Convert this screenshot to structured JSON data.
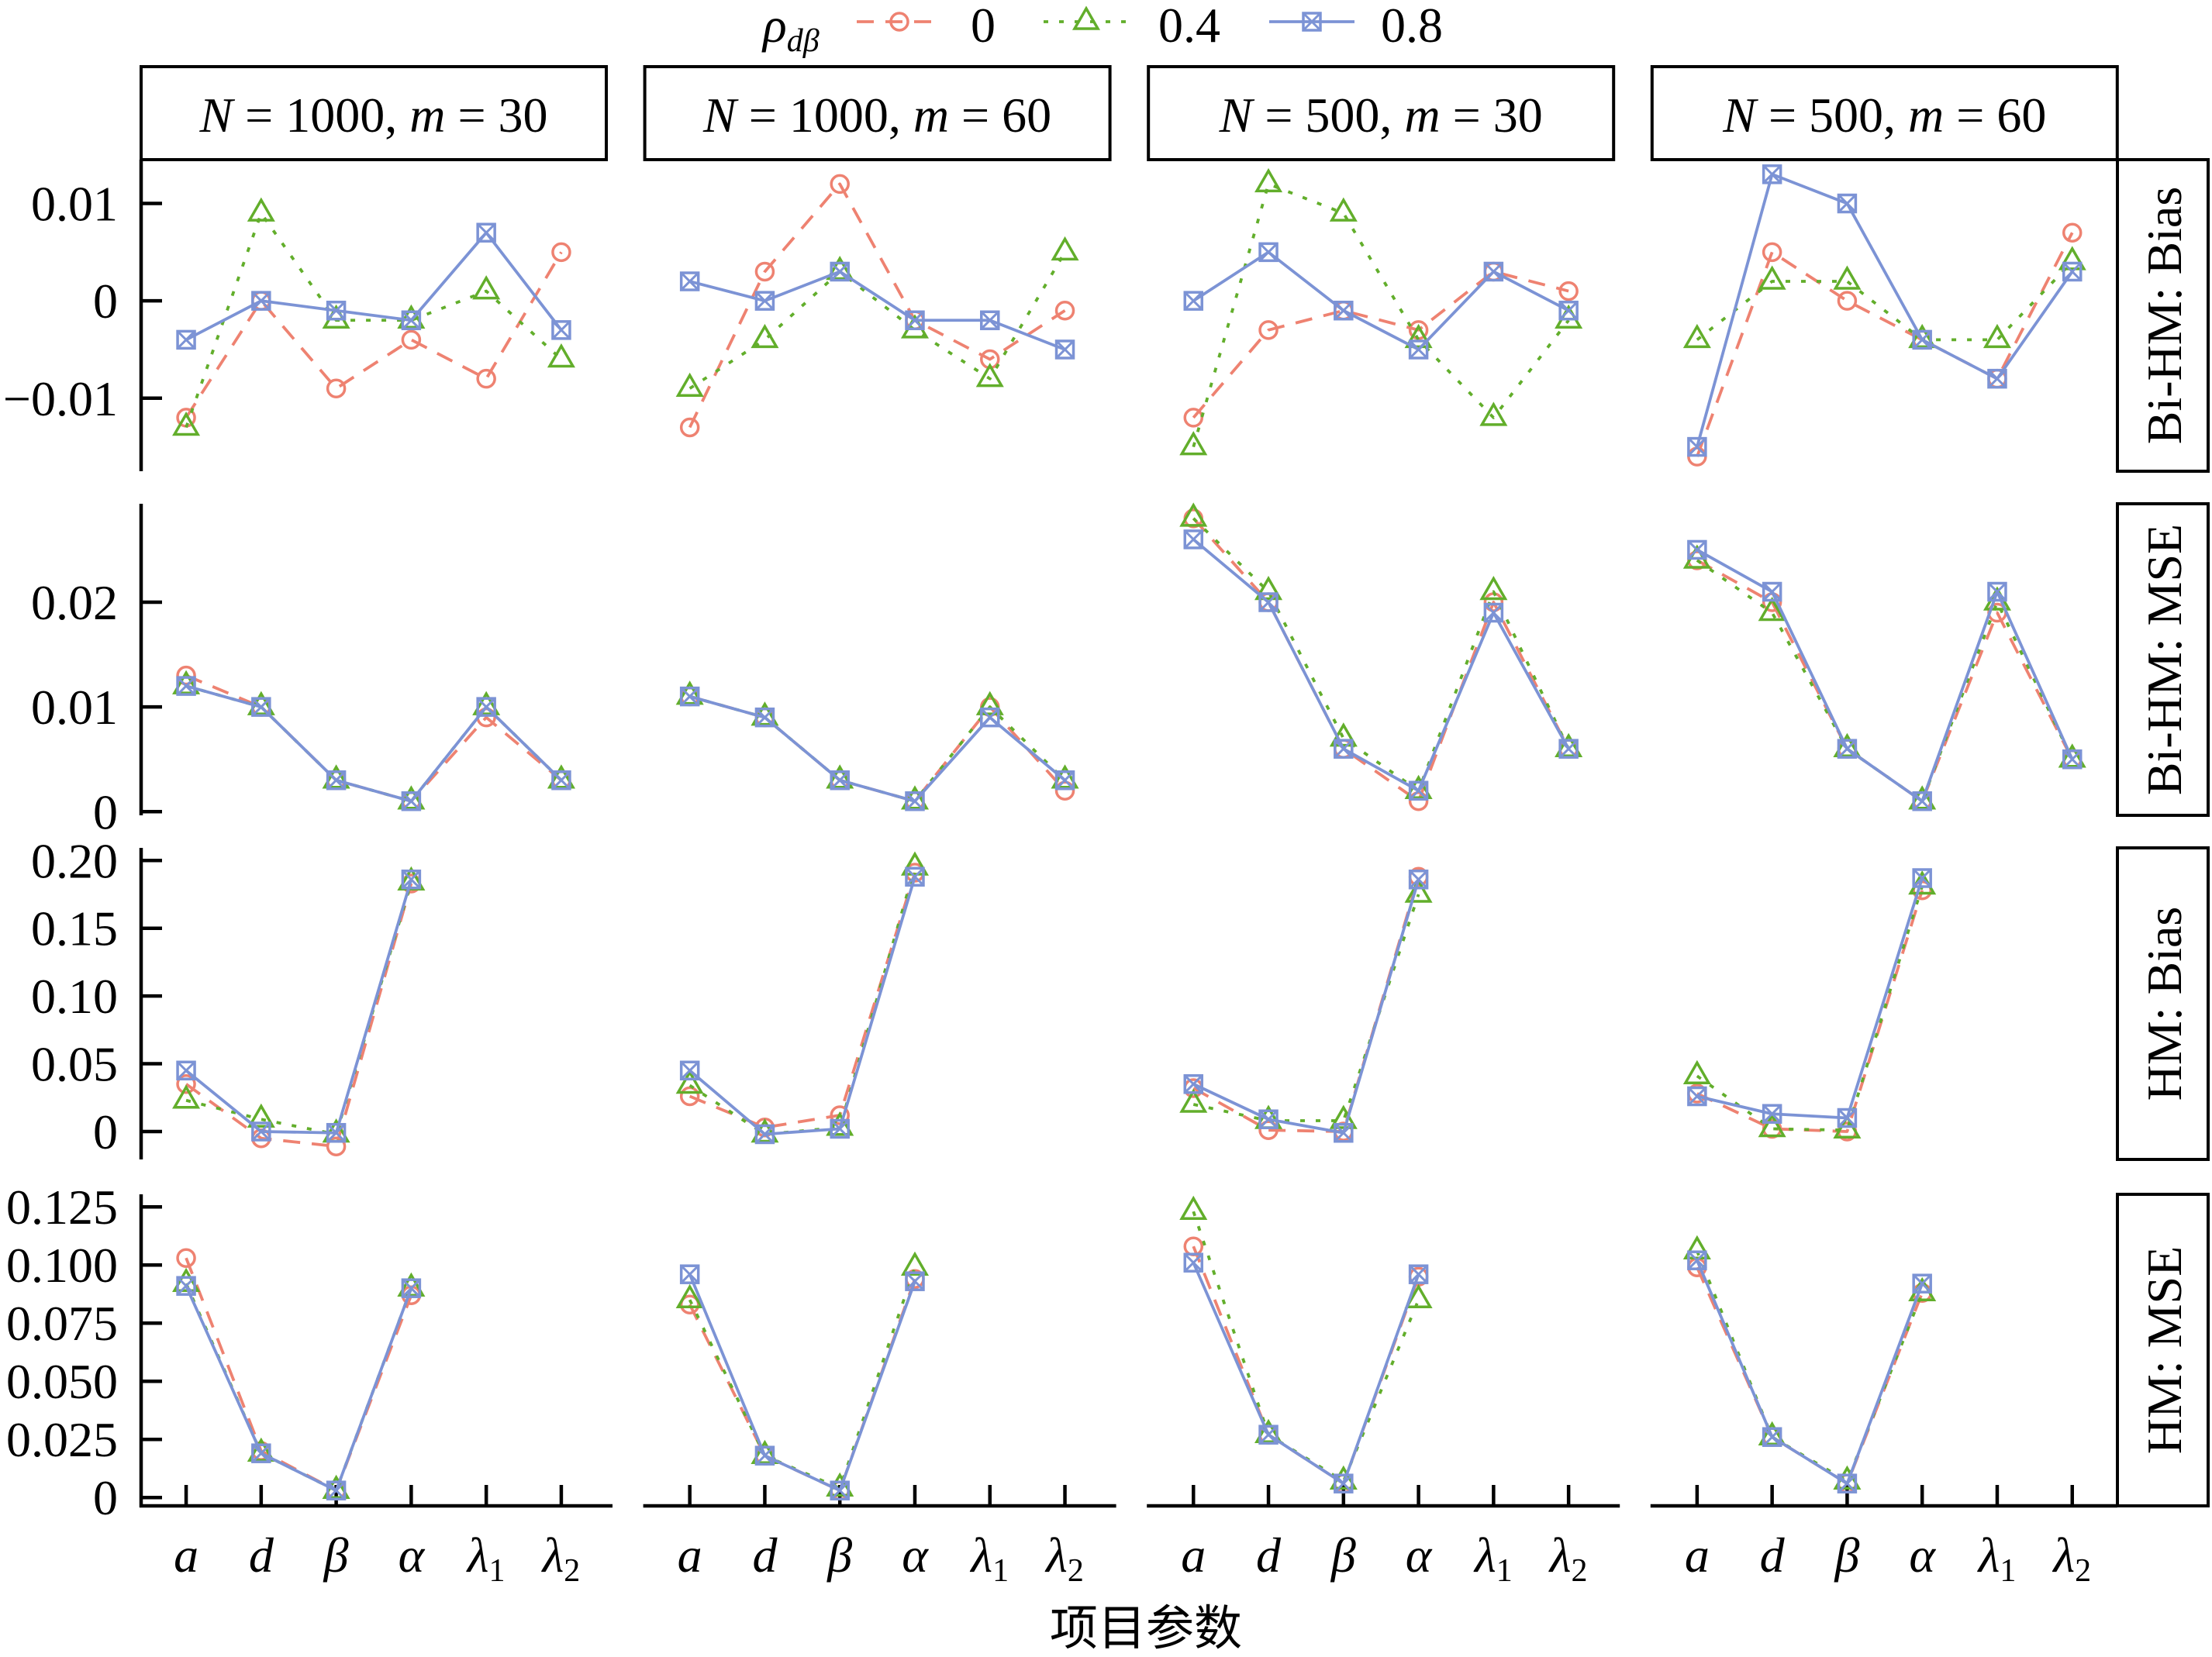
{
  "chart_data": {
    "type": "line",
    "title": "",
    "xlabel": "项目参数",
    "ylabel": "",
    "grid": false,
    "categories": [
      "a",
      "d",
      "β",
      "α",
      "λ1",
      "λ2"
    ],
    "category_labels": [
      {
        "base": "a"
      },
      {
        "base": "d"
      },
      {
        "base": "β"
      },
      {
        "base": "α"
      },
      {
        "base": "λ",
        "sub": "1"
      },
      {
        "base": "λ",
        "sub": "2"
      }
    ],
    "legend": {
      "title": "ρdβ",
      "title_base": "ρ",
      "title_sub": "dβ",
      "placement": "top",
      "entries": [
        {
          "label": "0",
          "color": "#EE8271",
          "linetype": "dashed",
          "marker": "circle-open"
        },
        {
          "label": "0.4",
          "color": "#62AE2B",
          "linetype": "dotted",
          "marker": "triangle-open"
        },
        {
          "label": "0.8",
          "color": "#7C93D5",
          "linetype": "solid",
          "marker": "square-cross"
        }
      ]
    },
    "columns": [
      {
        "label": "N = 1000, m = 30",
        "label_parts": [
          {
            "text": "N",
            "italic": true
          },
          {
            "text": " = 1000, "
          },
          {
            "text": "m",
            "italic": true
          },
          {
            "text": " = 30"
          }
        ]
      },
      {
        "label": "N = 1000, m = 60",
        "label_parts": [
          {
            "text": "N",
            "italic": true
          },
          {
            "text": " = 1000, "
          },
          {
            "text": "m",
            "italic": true
          },
          {
            "text": " = 60"
          }
        ]
      },
      {
        "label": "N = 500, m = 30",
        "label_parts": [
          {
            "text": "N",
            "italic": true
          },
          {
            "text": " = 500, "
          },
          {
            "text": "m",
            "italic": true
          },
          {
            "text": " = 30"
          }
        ]
      },
      {
        "label": "N = 500, m = 60",
        "label_parts": [
          {
            "text": "N",
            "italic": true
          },
          {
            "text": " = 500, "
          },
          {
            "text": "m",
            "italic": true
          },
          {
            "text": " = 60"
          }
        ]
      }
    ],
    "rows": [
      {
        "label": "Bi-HM: Bias",
        "ylim": [
          -0.0175,
          0.0145
        ],
        "yticks": [
          -0.01,
          0,
          0.01
        ],
        "ytick_labels": [
          "−0.01",
          "0",
          "0.01"
        ]
      },
      {
        "label": "Bi-HM: MSE",
        "ylim": [
          -0.00035,
          0.0294
        ],
        "yticks": [
          0,
          0.01,
          0.02
        ],
        "ytick_labels": [
          "0",
          "0.01",
          "0.02"
        ]
      },
      {
        "label": "HM: Bias",
        "ylim": [
          -0.0206,
          0.2093
        ],
        "yticks": [
          0,
          0.05,
          0.1,
          0.15,
          0.2
        ],
        "ytick_labels": [
          "0",
          "0.05",
          "0.10",
          "0.15",
          "0.20"
        ]
      },
      {
        "label": "HM: MSE",
        "ylim": [
          -0.0036,
          0.1304
        ],
        "yticks": [
          0,
          0.025,
          0.05,
          0.075,
          0.1,
          0.125
        ],
        "ytick_labels": [
          "0",
          "0.025",
          "0.050",
          "0.075",
          "0.100",
          "0.125"
        ]
      }
    ],
    "panels": [
      {
        "row": 0,
        "col": 0,
        "series": [
          {
            "name": "0",
            "values": [
              -0.012,
              0.0,
              -0.009,
              -0.004,
              -0.008,
              0.005
            ]
          },
          {
            "name": "0.4",
            "values": [
              -0.013,
              0.009,
              -0.002,
              -0.002,
              0.001,
              -0.006
            ]
          },
          {
            "name": "0.8",
            "values": [
              -0.004,
              0.0,
              -0.001,
              -0.002,
              0.007,
              -0.003
            ]
          }
        ]
      },
      {
        "row": 0,
        "col": 1,
        "series": [
          {
            "name": "0",
            "values": [
              -0.013,
              0.003,
              0.012,
              -0.002,
              -0.006,
              -0.001
            ]
          },
          {
            "name": "0.4",
            "values": [
              -0.009,
              -0.004,
              0.003,
              -0.003,
              -0.008,
              0.005
            ]
          },
          {
            "name": "0.8",
            "values": [
              0.002,
              0.0,
              0.003,
              -0.002,
              -0.002,
              -0.005
            ]
          }
        ]
      },
      {
        "row": 0,
        "col": 2,
        "series": [
          {
            "name": "0",
            "values": [
              -0.012,
              -0.003,
              -0.001,
              -0.003,
              0.003,
              0.001
            ]
          },
          {
            "name": "0.4",
            "values": [
              -0.015,
              0.012,
              0.009,
              -0.004,
              -0.012,
              -0.002
            ]
          },
          {
            "name": "0.8",
            "values": [
              0.0,
              0.005,
              -0.001,
              -0.005,
              0.003,
              -0.001
            ]
          }
        ]
      },
      {
        "row": 0,
        "col": 3,
        "series": [
          {
            "name": "0",
            "values": [
              -0.016,
              0.005,
              0.0,
              -0.004,
              -0.008,
              0.007
            ]
          },
          {
            "name": "0.4",
            "values": [
              -0.004,
              0.002,
              0.002,
              -0.004,
              -0.004,
              0.004
            ]
          },
          {
            "name": "0.8",
            "values": [
              -0.015,
              0.013,
              0.01,
              -0.004,
              -0.008,
              0.003
            ]
          }
        ]
      },
      {
        "row": 1,
        "col": 0,
        "series": [
          {
            "name": "0",
            "values": [
              0.013,
              0.01,
              0.003,
              0.001,
              0.009,
              0.003
            ]
          },
          {
            "name": "0.4",
            "values": [
              0.012,
              0.01,
              0.003,
              0.001,
              0.01,
              0.003
            ]
          },
          {
            "name": "0.8",
            "values": [
              0.012,
              0.01,
              0.003,
              0.001,
              0.01,
              0.003
            ]
          }
        ]
      },
      {
        "row": 1,
        "col": 1,
        "series": [
          {
            "name": "0",
            "values": [
              0.011,
              0.009,
              0.003,
              0.001,
              0.01,
              0.002
            ]
          },
          {
            "name": "0.4",
            "values": [
              0.011,
              0.009,
              0.003,
              0.001,
              0.01,
              0.003
            ]
          },
          {
            "name": "0.8",
            "values": [
              0.011,
              0.009,
              0.003,
              0.001,
              0.009,
              0.003
            ]
          }
        ]
      },
      {
        "row": 1,
        "col": 2,
        "series": [
          {
            "name": "0",
            "values": [
              0.028,
              0.02,
              0.006,
              0.001,
              0.02,
              0.006
            ]
          },
          {
            "name": "0.4",
            "values": [
              0.028,
              0.021,
              0.007,
              0.002,
              0.021,
              0.006
            ]
          },
          {
            "name": "0.8",
            "values": [
              0.026,
              0.02,
              0.006,
              0.002,
              0.019,
              0.006
            ]
          }
        ]
      },
      {
        "row": 1,
        "col": 3,
        "series": [
          {
            "name": "0",
            "values": [
              0.024,
              0.02,
              0.006,
              0.001,
              0.019,
              0.005
            ]
          },
          {
            "name": "0.4",
            "values": [
              0.024,
              0.019,
              0.006,
              0.001,
              0.02,
              0.005
            ]
          },
          {
            "name": "0.8",
            "values": [
              0.025,
              0.021,
              0.006,
              0.001,
              0.021,
              0.005
            ]
          }
        ]
      },
      {
        "row": 2,
        "col": 0,
        "series": [
          {
            "name": "0",
            "values": [
              0.035,
              -0.005,
              -0.011,
              0.183,
              null,
              null
            ]
          },
          {
            "name": "0.4",
            "values": [
              0.023,
              0.009,
              -0.002,
              0.184,
              null,
              null
            ]
          },
          {
            "name": "0.8",
            "values": [
              0.045,
              0.0,
              -0.001,
              0.186,
              null,
              null
            ]
          }
        ]
      },
      {
        "row": 2,
        "col": 1,
        "series": [
          {
            "name": "0",
            "values": [
              0.026,
              0.003,
              0.012,
              0.191,
              null,
              null
            ]
          },
          {
            "name": "0.4",
            "values": [
              0.034,
              -0.002,
              0.003,
              0.195,
              null,
              null
            ]
          },
          {
            "name": "0.8",
            "values": [
              0.045,
              -0.002,
              0.002,
              0.188,
              null,
              null
            ]
          }
        ]
      },
      {
        "row": 2,
        "col": 2,
        "series": [
          {
            "name": "0",
            "values": [
              0.032,
              0.001,
              0.0,
              0.188,
              null,
              null
            ]
          },
          {
            "name": "0.4",
            "values": [
              0.02,
              0.008,
              0.008,
              0.175,
              null,
              null
            ]
          },
          {
            "name": "0.8",
            "values": [
              0.035,
              0.009,
              -0.001,
              0.186,
              null,
              null
            ]
          }
        ]
      },
      {
        "row": 2,
        "col": 3,
        "series": [
          {
            "name": "0",
            "values": [
              0.028,
              0.002,
              0.0,
              0.178,
              null,
              null
            ]
          },
          {
            "name": "0.4",
            "values": [
              0.041,
              0.002,
              0.001,
              0.181,
              null,
              null
            ]
          },
          {
            "name": "0.8",
            "values": [
              0.026,
              0.013,
              0.01,
              0.187,
              null,
              null
            ]
          }
        ]
      },
      {
        "row": 3,
        "col": 0,
        "series": [
          {
            "name": "0",
            "values": [
              0.103,
              0.02,
              0.003,
              0.087,
              null,
              null
            ]
          },
          {
            "name": "0.4",
            "values": [
              0.092,
              0.019,
              0.003,
              0.09,
              null,
              null
            ]
          },
          {
            "name": "0.8",
            "values": [
              0.091,
              0.019,
              0.003,
              0.09,
              null,
              null
            ]
          }
        ]
      },
      {
        "row": 3,
        "col": 1,
        "series": [
          {
            "name": "0",
            "values": [
              0.083,
              0.018,
              0.003,
              0.094,
              null,
              null
            ]
          },
          {
            "name": "0.4",
            "values": [
              0.085,
              0.018,
              0.004,
              0.099,
              null,
              null
            ]
          },
          {
            "name": "0.8",
            "values": [
              0.096,
              0.018,
              0.003,
              0.093,
              null,
              null
            ]
          }
        ]
      },
      {
        "row": 3,
        "col": 2,
        "series": [
          {
            "name": "0",
            "values": [
              0.108,
              0.027,
              0.006,
              0.095,
              null,
              null
            ]
          },
          {
            "name": "0.4",
            "values": [
              0.123,
              0.027,
              0.007,
              0.085,
              null,
              null
            ]
          },
          {
            "name": "0.8",
            "values": [
              0.101,
              0.027,
              0.006,
              0.096,
              null,
              null
            ]
          }
        ]
      },
      {
        "row": 3,
        "col": 3,
        "series": [
          {
            "name": "0",
            "values": [
              0.099,
              0.026,
              0.006,
              0.088,
              null,
              null
            ]
          },
          {
            "name": "0.4",
            "values": [
              0.106,
              0.026,
              0.007,
              0.088,
              null,
              null
            ]
          },
          {
            "name": "0.8",
            "values": [
              0.102,
              0.026,
              0.006,
              0.092,
              null,
              null
            ]
          }
        ]
      }
    ]
  }
}
